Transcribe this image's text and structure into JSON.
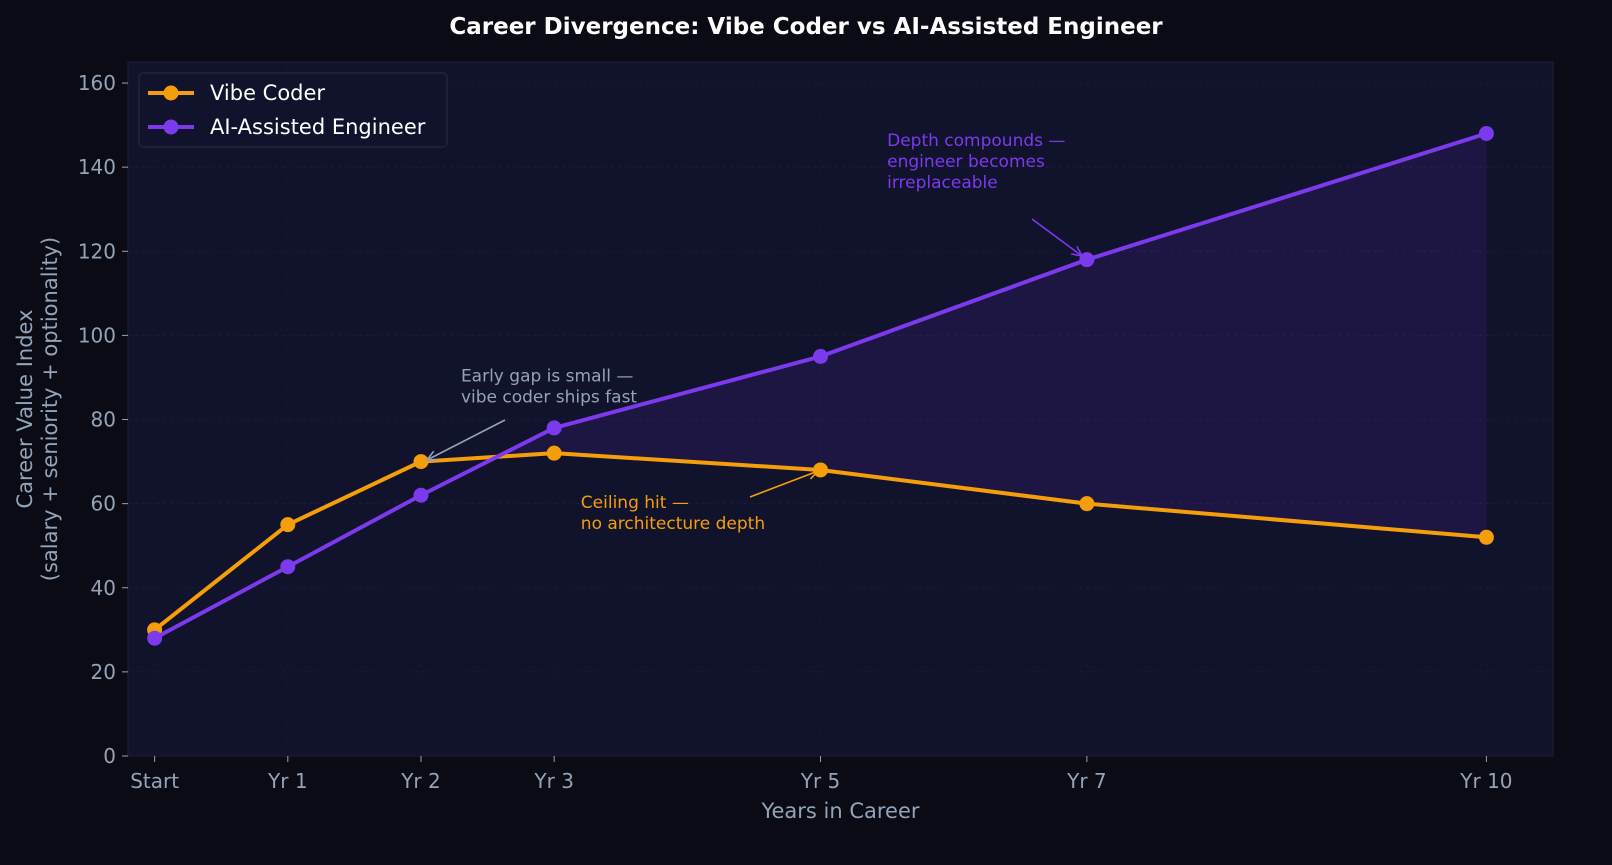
{
  "chart_data": {
    "type": "line",
    "title": "Career Divergence: Vibe Coder vs AI-Assisted Engineer",
    "xlabel": "Years in Career",
    "ylabel": [
      "Career Value Index",
      "(salary + seniority + optionality)"
    ],
    "x": [
      0,
      1,
      2,
      3,
      5,
      7,
      10
    ],
    "x_tick_labels": [
      "Start",
      "Yr 1",
      "Yr 2",
      "Yr 3",
      "Yr 5",
      "Yr 7",
      "Yr 10"
    ],
    "ylim": [
      0,
      165
    ],
    "y_ticks": [
      0,
      20,
      40,
      60,
      80,
      100,
      120,
      140,
      160
    ],
    "grid": true,
    "legend_position": "top-left",
    "series": [
      {
        "name": "Vibe Coder",
        "color": "#f59e0b",
        "values": [
          30,
          55,
          70,
          72,
          68,
          60,
          52
        ]
      },
      {
        "name": "AI-Assisted Engineer",
        "color": "#7c3aed",
        "values": [
          28,
          45,
          62,
          78,
          95,
          118,
          148
        ]
      }
    ],
    "fill_between": {
      "series": [
        0,
        1
      ],
      "color": "#7c3aed",
      "opacity": 0.12
    },
    "annotations": [
      {
        "lines": [
          "Early gap is small —",
          "vibe coder ships fast"
        ],
        "color": "#94a3b8",
        "target": [
          2,
          70
        ],
        "text_anchor_at": [
          2.3,
          84
        ]
      },
      {
        "lines": [
          "Ceiling hit —",
          "no architecture depth"
        ],
        "color": "#f59e0b",
        "target": [
          5,
          68
        ],
        "text_anchor_at": [
          3.2,
          54
        ]
      },
      {
        "lines": [
          "Depth compounds —",
          "engineer becomes",
          "irreplaceable"
        ],
        "color": "#7c3aed",
        "target": [
          7,
          118
        ],
        "text_anchor_at": [
          5.5,
          135
        ]
      }
    ],
    "colors": {
      "page_background": "#0a0b14",
      "plot_background": "#11122b",
      "grid": "#262844",
      "tick_text": "#94a3b8",
      "title_text": "#ffffff",
      "legend_text": "#ffffff"
    }
  }
}
